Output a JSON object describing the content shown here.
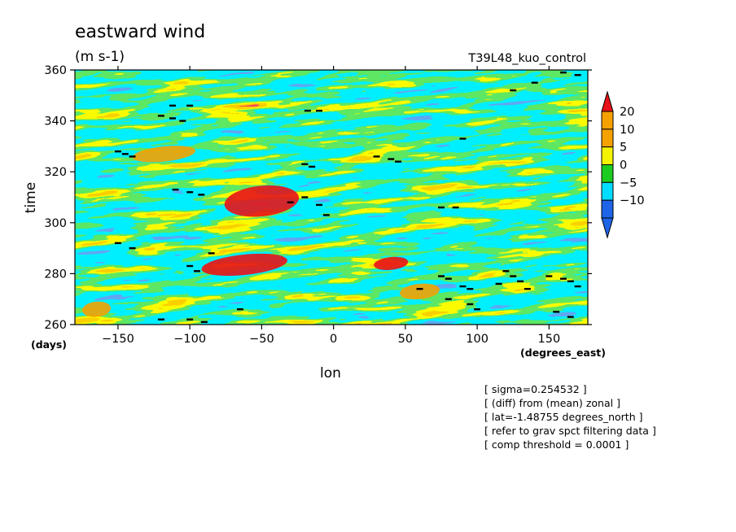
{
  "chart_data": {
    "type": "heatmap",
    "title": "eastward wind",
    "subtitle": "(m s-1)",
    "run_label": "T39L48_kuo_control",
    "xlabel": "lon",
    "x_units": "(degrees_east)",
    "ylabel": "time",
    "y_units": "(days)",
    "xlim": [
      -180,
      177
    ],
    "ylim": [
      260,
      360
    ],
    "x_ticks": [
      -150,
      -100,
      -50,
      0,
      50,
      100,
      150
    ],
    "y_ticks": [
      260,
      280,
      300,
      320,
      340,
      360
    ],
    "colorbar": {
      "levels": [
        -10,
        -5,
        0,
        5,
        10,
        20
      ],
      "colors": [
        "#1e64e6",
        "#00ddff",
        "#1ccc20",
        "#f4f400",
        "#f5a100",
        "#e8121a"
      ],
      "extend": "both"
    },
    "pattern": "eastward-propagating banded anomalies, mostly -10 to 10 m s-1, with isolated cores above 20 near (-50, 308) and (-70, 283)"
  },
  "notes": [
    "[ sigma=0.254532 ]",
    "[ (diff) from (mean) zonal ]",
    "[ lat=-1.48755 degrees_north ]",
    "[ refer to grav spct filtering data ]",
    "[ comp threshold = 0.0001 ]"
  ]
}
